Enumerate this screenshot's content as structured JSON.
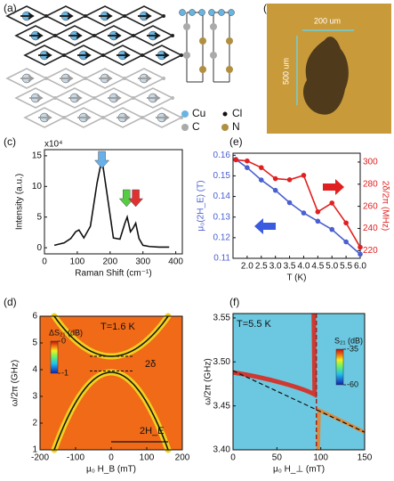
{
  "panels": [
    "(a)",
    "(b)",
    "(c)",
    "(e)",
    "(d)",
    "(f)"
  ],
  "legend": [
    "Cu",
    "Cl",
    "C",
    "N"
  ],
  "image_b": {
    "scale_x": "200 um",
    "scale_y": "500 um"
  },
  "chart_data": [
    {
      "type": "line",
      "xlabel": "Raman Shift (cm⁻¹)",
      "ylabel": "Intensity (a.u.)",
      "multiplier": "x10⁴",
      "x": [
        30,
        60,
        80,
        95,
        105,
        120,
        140,
        160,
        175,
        190,
        210,
        230,
        245,
        252,
        262,
        270,
        278,
        288,
        300,
        320,
        350,
        380
      ],
      "values": [
        0.4,
        0.8,
        1.5,
        2.6,
        2.9,
        1.6,
        3.5,
        10.5,
        14.5,
        9.0,
        1.6,
        1.4,
        4.0,
        5.0,
        2.6,
        3.2,
        4.0,
        1.5,
        0.4,
        0.2,
        0.1,
        0.1
      ],
      "color": "#111111",
      "arrows": [
        {
          "x": 175,
          "color": "#6ab0e8"
        },
        {
          "x": 250,
          "color": "#55cc44"
        },
        {
          "x": 278,
          "color": "#e03030"
        }
      ],
      "xlim": [
        0,
        420
      ],
      "xticks": [
        0,
        100,
        200,
        300,
        400
      ],
      "ylim": [
        -1,
        16
      ],
      "yticks": [
        0,
        5,
        10,
        15
      ]
    },
    {
      "type": "line",
      "xlabel": "T (K)",
      "ylabel": "μ₀(2H_E) (T)",
      "y2label": "2δ/2π (MHz)",
      "x": [
        1.6,
        2.0,
        2.5,
        3.0,
        3.5,
        4.0,
        4.5,
        5.0,
        5.5,
        6.0
      ],
      "series": [
        {
          "name": "μ₀(2H_E)",
          "color": "#4a5fd0",
          "values": [
            0.158,
            0.154,
            0.148,
            0.143,
            0.137,
            0.132,
            0.128,
            0.124,
            0.118,
            0.112
          ]
        },
        {
          "name": "2δ/2π",
          "color": "#e02020",
          "axis": "y2",
          "values": [
            302,
            301,
            295,
            285,
            284,
            288,
            255,
            263,
            245,
            223
          ]
        }
      ],
      "xlim": [
        1.5,
        6.0
      ],
      "xticks": [
        {
          "value": 2,
          "label": "2.0"
        },
        2.5,
        {
          "value": 3,
          "label": "3.0"
        },
        3.5,
        {
          "value": 4,
          "label": "4.0"
        },
        4.5,
        {
          "value": 5,
          "label": "5.0"
        },
        5.5,
        {
          "value": 6,
          "label": "6.0"
        }
      ],
      "ylim": [
        0.11,
        0.161
      ],
      "yticks": [
        0.11,
        0.12,
        0.13,
        0.14,
        0.15,
        0.16
      ],
      "y2lim": [
        213,
        308
      ],
      "y2ticks": [
        220,
        240,
        260,
        280,
        300
      ]
    },
    {
      "type": "heatmap",
      "xlabel": "μ₀ H_B (mT)",
      "ylabel": "ω/2π (GHz)",
      "colorbar": "ΔS₂₁ (dB)",
      "annotations": [
        "T=1.6 K",
        "2δ",
        "2H_E"
      ],
      "xlim": [
        -200,
        200
      ],
      "xticks": [
        -200,
        -100,
        0,
        100,
        200
      ],
      "ylim": [
        1,
        6
      ],
      "yticks": [
        1,
        2,
        3,
        4,
        5,
        6
      ],
      "clim": [
        -1,
        0
      ],
      "cticks": [
        0,
        -1
      ]
    },
    {
      "type": "heatmap",
      "xlabel": "μ₀ H_⊥ (mT)",
      "ylabel": "ω/2π (GHz)",
      "colorbar": "S₂₁ (dB)",
      "annotations": [
        "T=5.5 K"
      ],
      "xlim": [
        0,
        150
      ],
      "xticks": [
        0,
        50,
        100,
        150
      ],
      "ylim": [
        3.4,
        3.555
      ],
      "yticks": [
        {
          "value": 3.4,
          "label": "3.40"
        },
        3.45,
        {
          "value": 3.5,
          "label": "3.50"
        },
        3.55
      ],
      "clim": [
        -60,
        -35
      ],
      "cticks": [
        -35,
        -60
      ]
    }
  ]
}
